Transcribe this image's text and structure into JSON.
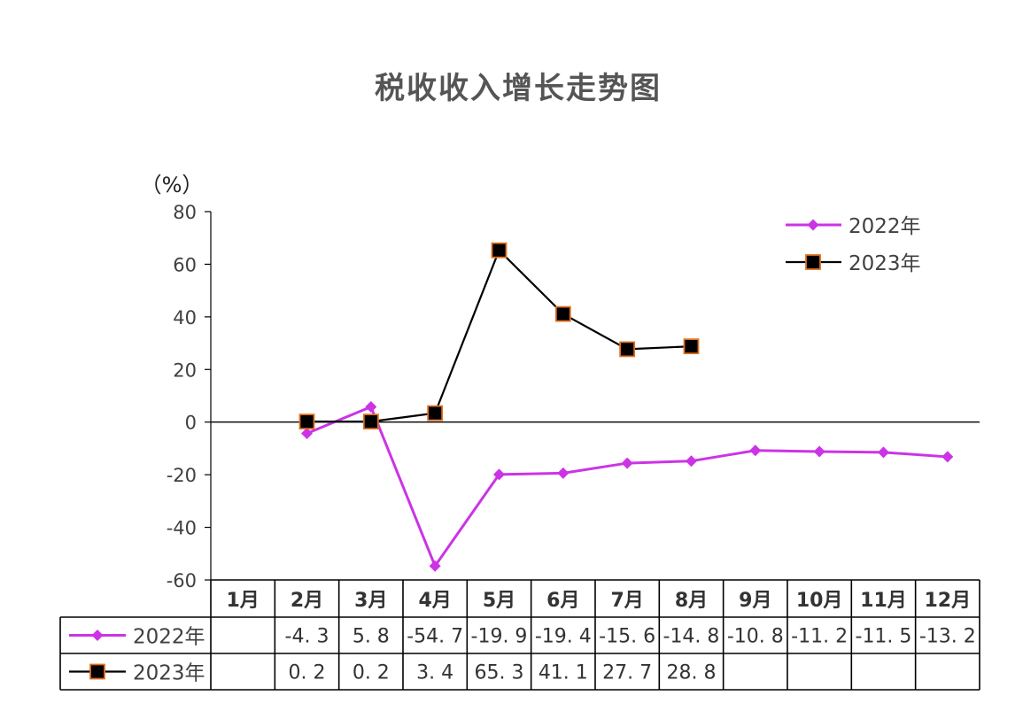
{
  "chart_data": {
    "type": "line",
    "title": "税收收入增长走势图",
    "ylabel": "（%）",
    "ylim": [
      -60,
      80
    ],
    "yticks": [
      "80",
      "60",
      "40",
      "20",
      "0",
      "-20",
      "-40",
      "-60"
    ],
    "categories": [
      "1月",
      "2月",
      "3月",
      "4月",
      "5月",
      "6月",
      "7月",
      "8月",
      "9月",
      "10月",
      "11月",
      "12月"
    ],
    "series": [
      {
        "name": "2022年",
        "color": "#CC33E6",
        "marker": "diamond",
        "values": [
          null,
          -4.3,
          5.8,
          -54.7,
          -19.9,
          -19.4,
          -15.6,
          -14.8,
          -10.8,
          -11.2,
          -11.5,
          -13.2
        ],
        "labels": [
          "",
          "-4. 3",
          "5. 8",
          "-54. 7",
          "-19. 9",
          "-19. 4",
          "-15. 6",
          "-14. 8",
          "-10. 8",
          "-11. 2",
          "-11. 5",
          "-13. 2"
        ]
      },
      {
        "name": "2023年",
        "color": "#000000",
        "marker": "square",
        "marker_edge": "#E07020",
        "values": [
          null,
          0.2,
          0.2,
          3.4,
          65.3,
          41.1,
          27.7,
          28.8,
          null,
          null,
          null,
          null
        ],
        "labels": [
          "",
          "0. 2",
          "0. 2",
          "3. 4",
          "65. 3",
          "41. 1",
          "27. 7",
          "28. 8",
          "",
          "",
          "",
          ""
        ]
      }
    ],
    "legend_position": "top-right",
    "grid": false
  }
}
